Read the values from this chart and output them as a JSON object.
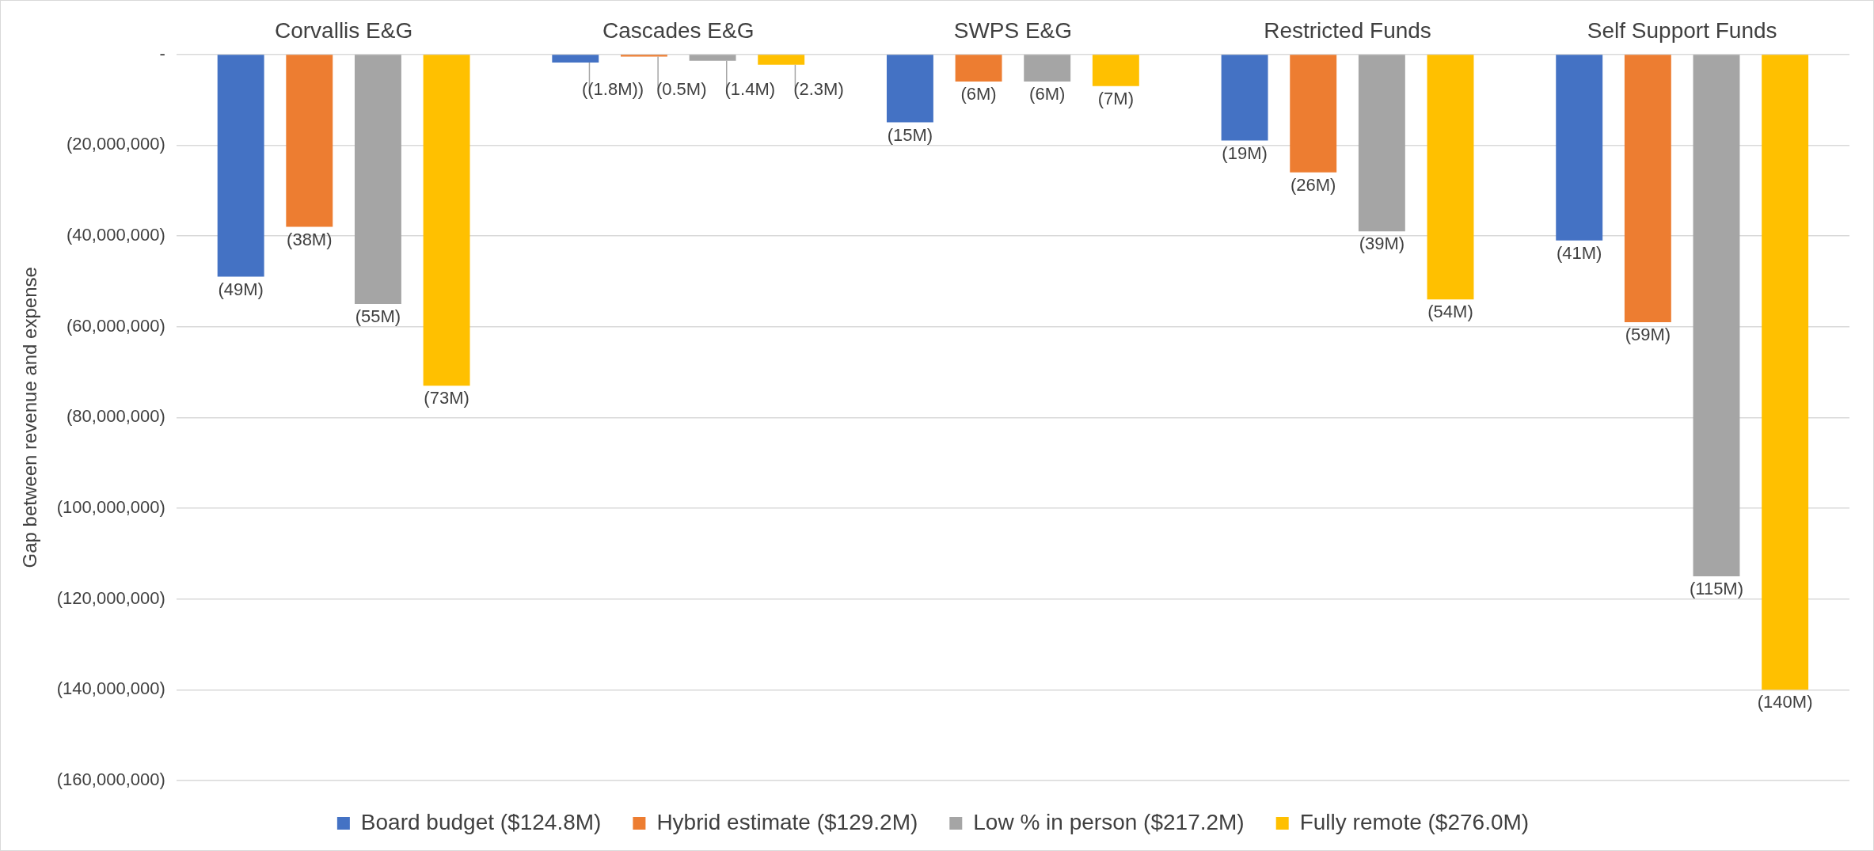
{
  "chart_data": {
    "type": "bar",
    "ylabel": "Gap between revenue and expense",
    "categories": [
      "Corvallis E&G",
      "Cascades E&G",
      "SWPS E&G",
      "Restricted Funds",
      "Self Support Funds"
    ],
    "series": [
      {
        "name": "Board budget ($124.8M)",
        "color": "#4472c4",
        "values": [
          -49000000,
          -1800000,
          -15000000,
          -19000000,
          -41000000
        ],
        "value_labels": [
          "(49M)",
          "((1.8M))",
          "(15M)",
          "(19M)",
          "(41M)"
        ]
      },
      {
        "name": "Hybrid estimate ($129.2M)",
        "color": "#ed7d31",
        "values": [
          -38000000,
          -500000,
          -6000000,
          -26000000,
          -59000000
        ],
        "value_labels": [
          "(38M)",
          "(0.5M)",
          "(6M)",
          "(26M)",
          "(59M)"
        ]
      },
      {
        "name": "Low % in person ($217.2M)",
        "color": "#a5a5a5",
        "values": [
          -55000000,
          -1400000,
          -6000000,
          -39000000,
          -115000000
        ],
        "value_labels": [
          "(55M)",
          "(1.4M)",
          "(6M)",
          "(39M)",
          "(115M)"
        ]
      },
      {
        "name": "Fully remote ($276.0M)",
        "color": "#ffc000",
        "values": [
          -73000000,
          -2300000,
          -7000000,
          -54000000,
          -140000000
        ],
        "value_labels": [
          "(73M)",
          "(2.3M)",
          "(7M)",
          "(54M)",
          "(140M)"
        ]
      }
    ],
    "ylim": [
      -160000000,
      0
    ],
    "yticks": [
      {
        "value": 0,
        "label": "-"
      },
      {
        "value": -20000000,
        "label": "(20,000,000)"
      },
      {
        "value": -40000000,
        "label": "(40,000,000)"
      },
      {
        "value": -60000000,
        "label": "(60,000,000)"
      },
      {
        "value": -80000000,
        "label": "(80,000,000)"
      },
      {
        "value": -100000000,
        "label": "(100,000,000)"
      },
      {
        "value": -120000000,
        "label": "(120,000,000)"
      },
      {
        "value": -140000000,
        "label": "(140,000,000)"
      },
      {
        "value": -160000000,
        "label": "(160,000,000)"
      }
    ],
    "grid": "y",
    "legend": "bottom"
  }
}
